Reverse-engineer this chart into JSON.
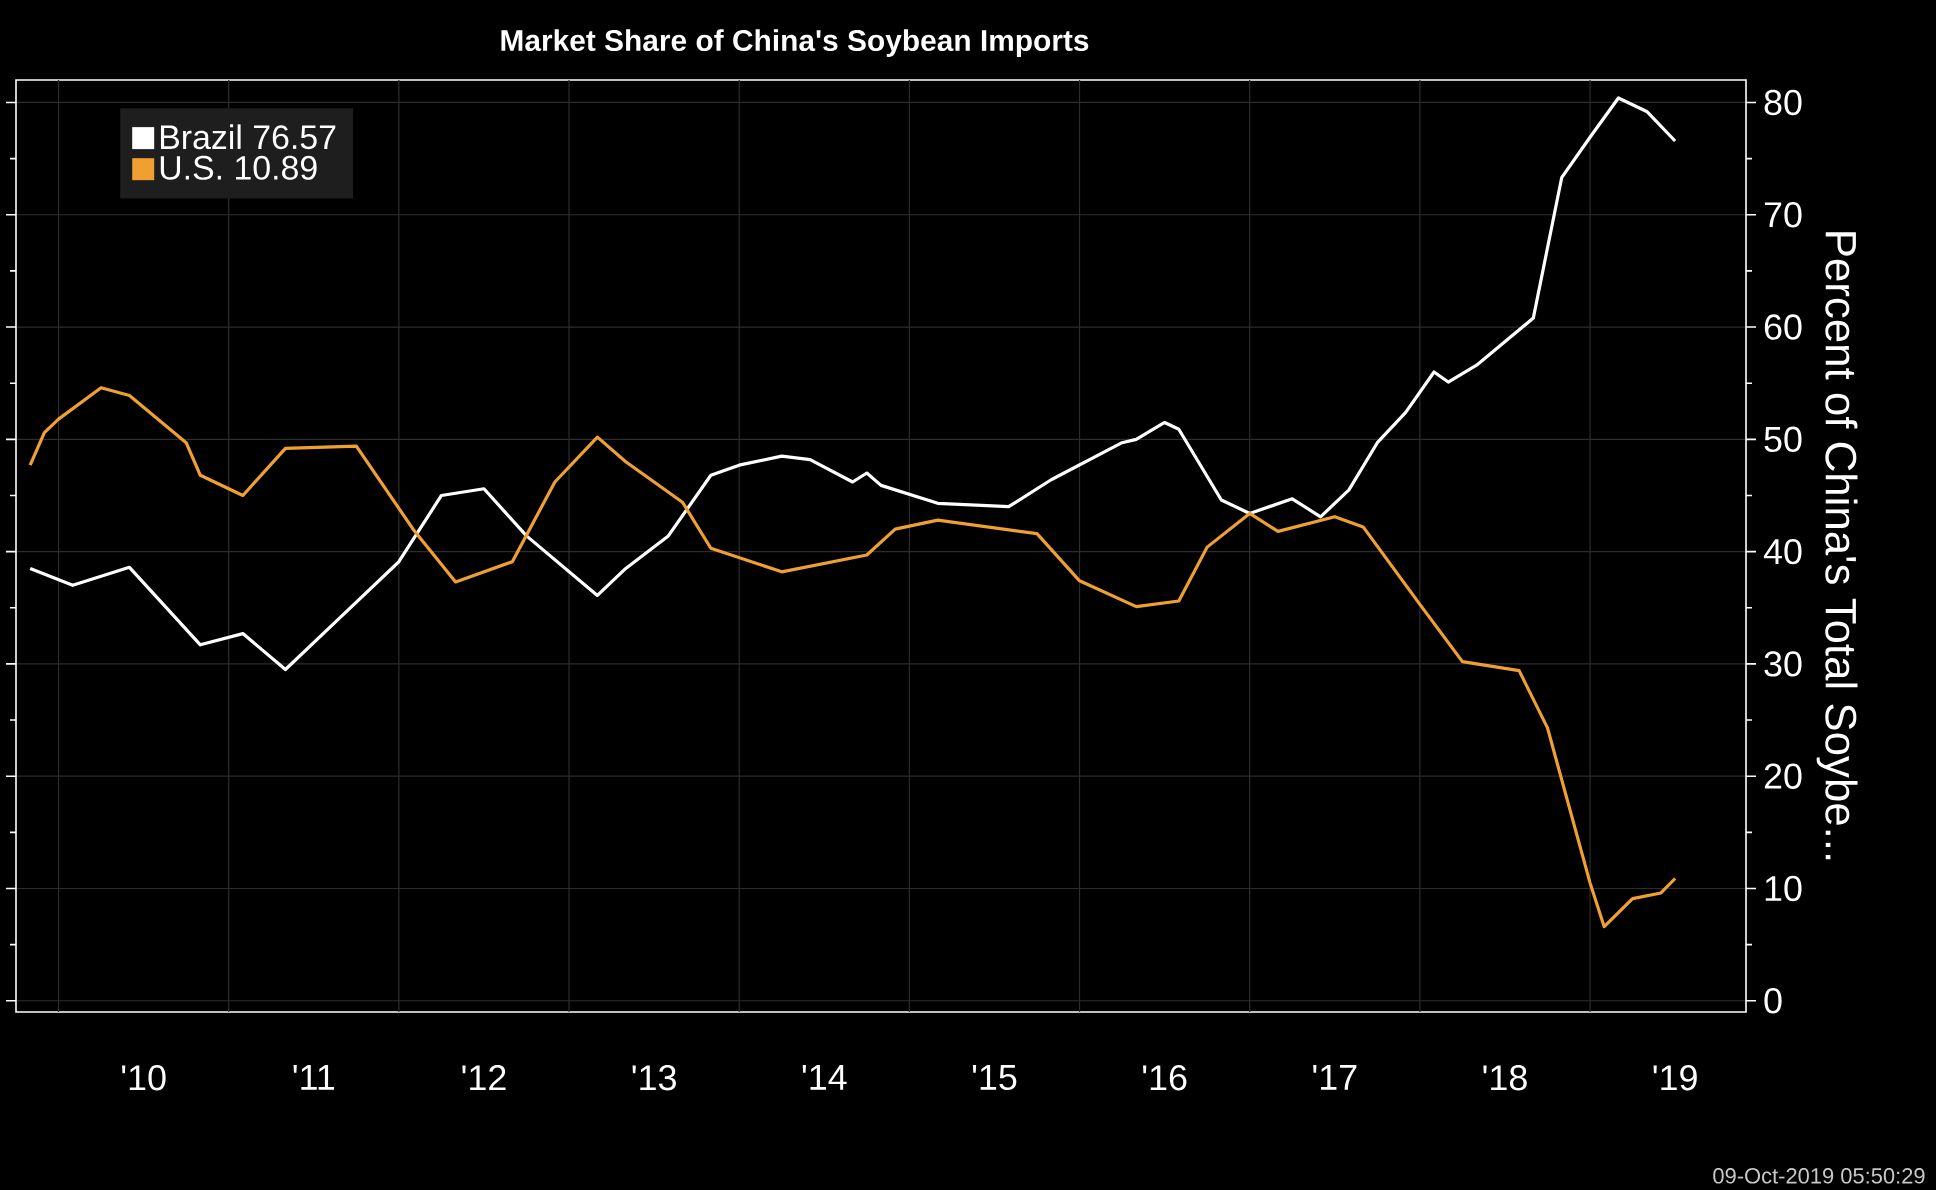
{
  "chart_data": {
    "type": "line",
    "title": "Market Share of China's Soybean Imports",
    "ylabel": "Percent of China's Total Soybe...",
    "xlim": [
      "2009-10",
      "2019-12"
    ],
    "ylim": [
      -1,
      82
    ],
    "xticks": [
      {
        "value": "2010-01",
        "label": null
      },
      {
        "value": "2010-07",
        "label": "'10"
      },
      {
        "value": "2011-01",
        "label": null
      },
      {
        "value": "2011-07",
        "label": "'11"
      },
      {
        "value": "2012-01",
        "label": null
      },
      {
        "value": "2012-07",
        "label": "'12"
      },
      {
        "value": "2013-01",
        "label": null
      },
      {
        "value": "2013-07",
        "label": "'13"
      },
      {
        "value": "2014-01",
        "label": null
      },
      {
        "value": "2014-07",
        "label": "'14"
      },
      {
        "value": "2015-01",
        "label": null
      },
      {
        "value": "2015-07",
        "label": "'15"
      },
      {
        "value": "2016-01",
        "label": null
      },
      {
        "value": "2016-07",
        "label": "'16"
      },
      {
        "value": "2017-01",
        "label": null
      },
      {
        "value": "2017-07",
        "label": "'17"
      },
      {
        "value": "2018-01",
        "label": null
      },
      {
        "value": "2018-07",
        "label": "'18"
      },
      {
        "value": "2019-01",
        "label": null
      },
      {
        "value": "2019-07",
        "label": "'19"
      }
    ],
    "yticks": [
      0,
      10,
      20,
      30,
      40,
      50,
      60,
      70,
      80
    ],
    "grid": true,
    "legend": "top left",
    "line_style": "solid",
    "annotations": [
      "09-Oct-2019 05:50:29"
    ],
    "series": [
      {
        "name": "Brazil 76.57",
        "color": "#ffffff",
        "x": [
          "2009-11",
          "2010-02",
          "2010-06",
          "2010-11",
          "2011-02",
          "2011-05",
          "2011-09",
          "2012-01",
          "2012-04",
          "2012-07",
          "2012-10",
          "2013-03",
          "2013-05",
          "2013-08",
          "2013-11",
          "2014-01",
          "2014-04",
          "2014-06",
          "2014-09",
          "2014-10",
          "2014-11",
          "2015-03",
          "2015-08",
          "2015-11",
          "2016-04",
          "2016-05",
          "2016-07",
          "2016-08",
          "2016-11",
          "2017-01",
          "2017-04",
          "2017-06",
          "2017-08",
          "2017-10",
          "2017-12",
          "2018-02",
          "2018-03",
          "2018-05",
          "2018-09",
          "2018-11",
          "2019-01",
          "2019-03",
          "2019-05",
          "2019-07"
        ],
        "values": [
          38.5,
          37.0,
          38.6,
          31.7,
          32.7,
          29.5,
          34.3,
          39.1,
          45.0,
          45.6,
          41.4,
          36.1,
          38.5,
          41.4,
          46.8,
          47.7,
          48.5,
          48.2,
          46.2,
          47.0,
          45.9,
          44.3,
          44.0,
          46.4,
          49.7,
          50.0,
          51.5,
          50.9,
          44.6,
          43.4,
          44.7,
          43.1,
          45.5,
          49.7,
          52.4,
          56.0,
          55.1,
          56.6,
          60.8,
          73.3,
          76.9,
          80.4,
          79.2,
          76.57
        ]
      },
      {
        "name": "U.S. 10.89",
        "color": "#f0a030",
        "x": [
          "2009-11",
          "2009-12",
          "2010-01",
          "2010-04",
          "2010-06",
          "2010-10",
          "2010-11",
          "2011-02",
          "2011-05",
          "2011-10",
          "2012-02",
          "2012-05",
          "2012-09",
          "2012-12",
          "2013-03",
          "2013-05",
          "2013-09",
          "2013-11",
          "2014-04",
          "2014-10",
          "2014-12",
          "2015-03",
          "2015-10",
          "2016-01",
          "2016-05",
          "2016-08",
          "2016-10",
          "2017-01",
          "2017-03",
          "2017-07",
          "2017-09",
          "2018-01",
          "2018-04",
          "2018-08",
          "2018-10",
          "2019-01",
          "2019-02",
          "2019-04",
          "2019-06",
          "2019-07"
        ],
        "values": [
          47.7,
          50.6,
          51.8,
          54.6,
          53.9,
          49.7,
          46.8,
          45.0,
          49.2,
          49.4,
          42.0,
          37.3,
          39.1,
          46.2,
          50.2,
          48.0,
          44.4,
          40.3,
          38.2,
          39.7,
          42.0,
          42.8,
          41.6,
          37.4,
          35.1,
          35.6,
          40.4,
          43.4,
          41.8,
          43.1,
          42.2,
          35.3,
          30.2,
          29.4,
          24.3,
          10.5,
          6.6,
          9.1,
          9.6,
          10.89
        ]
      }
    ]
  }
}
